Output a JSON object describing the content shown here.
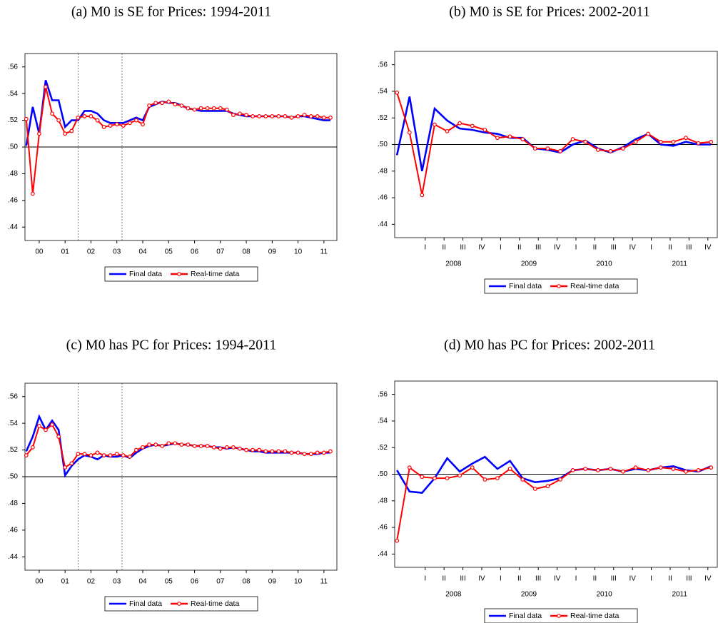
{
  "chart_data": [
    {
      "type": "line",
      "title": "(a) M0 is SE for Prices: 1994-2011",
      "x": [
        2000,
        2000.25,
        2000.5,
        2000.75,
        2001,
        2001.25,
        2001.5,
        2001.75,
        2002,
        2002.25,
        2002.5,
        2002.75,
        2003,
        2003.25,
        2003.5,
        2003.75,
        2004,
        2004.25,
        2004.5,
        2004.75,
        2005,
        2005.25,
        2005.5,
        2005.75,
        2006,
        2006.25,
        2006.5,
        2006.75,
        2007,
        2007.25,
        2007.5,
        2007.75,
        2008,
        2008.25,
        2008.5,
        2008.75,
        2009,
        2009.25,
        2009.5,
        2009.75,
        2010,
        2010.25,
        2010.5,
        2010.75,
        2011,
        2011.25,
        2011.5,
        2011.75
      ],
      "series": [
        {
          "name": "Final data",
          "color": "#0000ff",
          "values": [
            0.501,
            0.53,
            0.51,
            0.55,
            0.535,
            0.535,
            0.515,
            0.52,
            0.52,
            0.527,
            0.527,
            0.525,
            0.52,
            0.518,
            0.518,
            0.518,
            0.52,
            0.522,
            0.52,
            0.53,
            0.532,
            0.534,
            0.533,
            0.533,
            0.531,
            0.529,
            0.528,
            0.527,
            0.527,
            0.527,
            0.527,
            0.527,
            0.525,
            0.524,
            0.523,
            0.523,
            0.523,
            0.523,
            0.523,
            0.523,
            0.523,
            0.522,
            0.523,
            0.523,
            0.522,
            0.521,
            0.52,
            0.52
          ]
        },
        {
          "name": "Real-time data",
          "color": "#ff0000",
          "marker": "circle",
          "values": [
            0.521,
            0.465,
            0.51,
            0.545,
            0.525,
            0.52,
            0.51,
            0.512,
            0.522,
            0.523,
            0.523,
            0.52,
            0.515,
            0.516,
            0.517,
            0.516,
            0.518,
            0.52,
            0.517,
            0.531,
            0.533,
            0.533,
            0.534,
            0.532,
            0.531,
            0.529,
            0.528,
            0.529,
            0.529,
            0.529,
            0.529,
            0.528,
            0.524,
            0.525,
            0.524,
            0.523,
            0.523,
            0.523,
            0.523,
            0.523,
            0.523,
            0.522,
            0.523,
            0.524,
            0.523,
            0.523,
            0.522,
            0.522
          ]
        }
      ],
      "xlim": [
        1999.95,
        2012
      ],
      "ylim": [
        0.43,
        0.57
      ],
      "yticks": [
        {
          "value": 0.44,
          "label": ".44"
        },
        {
          "value": 0.46,
          "label": ".46"
        },
        {
          "value": 0.48,
          "label": ".48"
        },
        {
          "value": 0.5,
          "label": ".50"
        },
        {
          "value": 0.52,
          "label": ".52"
        },
        {
          "value": 0.54,
          "label": ".54"
        },
        {
          "value": 0.56,
          "label": ".56"
        }
      ],
      "xticks": [
        {
          "value": 2000.5,
          "label": "00"
        },
        {
          "value": 2001.5,
          "label": "01"
        },
        {
          "value": 2002.5,
          "label": "02"
        },
        {
          "value": 2003.5,
          "label": "03"
        },
        {
          "value": 2004.5,
          "label": "04"
        },
        {
          "value": 2005.5,
          "label": "05"
        },
        {
          "value": 2006.5,
          "label": "06"
        },
        {
          "value": 2007.5,
          "label": "07"
        },
        {
          "value": 2008.5,
          "label": "08"
        },
        {
          "value": 2009.5,
          "label": "09"
        },
        {
          "value": 2010.5,
          "label": "10"
        },
        {
          "value": 2011.5,
          "label": "11"
        }
      ],
      "hline": 0.5,
      "vlines": [
        2002.0,
        2003.7
      ],
      "legend": "bottom"
    },
    {
      "type": "line",
      "title": "(b) M0 is SE for Prices: 2002-2011",
      "x": [
        2007.75,
        2007.917,
        2008.083,
        2008.25,
        2008.417,
        2008.583,
        2008.75,
        2008.917,
        2009.083,
        2009.25,
        2009.417,
        2009.583,
        2009.75,
        2009.917,
        2010.083,
        2010.25,
        2010.417,
        2010.583,
        2010.75,
        2010.917,
        2011.083,
        2011.25,
        2011.417,
        2011.583,
        2011.75,
        2011.917
      ],
      "series": [
        {
          "name": "Final data",
          "color": "#0000ff",
          "values": [
            0.492,
            0.536,
            0.48,
            0.527,
            0.518,
            0.512,
            0.511,
            0.509,
            0.508,
            0.505,
            0.505,
            0.497,
            0.496,
            0.494,
            0.5,
            0.503,
            0.497,
            0.494,
            0.498,
            0.504,
            0.508,
            0.5,
            0.499,
            0.502,
            0.5,
            0.5
          ]
        },
        {
          "name": "Real-time data",
          "color": "#ff0000",
          "marker": "circle",
          "values": [
            0.539,
            0.509,
            0.462,
            0.515,
            0.51,
            0.516,
            0.514,
            0.511,
            0.505,
            0.506,
            0.504,
            0.497,
            0.497,
            0.495,
            0.504,
            0.502,
            0.496,
            0.495,
            0.497,
            0.502,
            0.508,
            0.502,
            0.502,
            0.505,
            0.501,
            0.502
          ]
        }
      ],
      "xlim": [
        2007.72,
        2012
      ],
      "ylim": [
        0.43,
        0.57
      ],
      "yticks": [
        {
          "value": 0.44,
          "label": ".44"
        },
        {
          "value": 0.46,
          "label": ".46"
        },
        {
          "value": 0.48,
          "label": ".48"
        },
        {
          "value": 0.5,
          "label": ".50"
        },
        {
          "value": 0.52,
          "label": ".52"
        },
        {
          "value": 0.54,
          "label": ".54"
        },
        {
          "value": 0.56,
          "label": ".56"
        }
      ],
      "xticks": [
        {
          "value": 2008.125,
          "label": "I"
        },
        {
          "value": 2008.375,
          "label": "II"
        },
        {
          "value": 2008.625,
          "label": "III"
        },
        {
          "value": 2008.875,
          "label": "IV"
        },
        {
          "value": 2009.125,
          "label": "I"
        },
        {
          "value": 2009.375,
          "label": "II"
        },
        {
          "value": 2009.625,
          "label": "III"
        },
        {
          "value": 2009.875,
          "label": "IV"
        },
        {
          "value": 2010.125,
          "label": "I"
        },
        {
          "value": 2010.375,
          "label": "II"
        },
        {
          "value": 2010.625,
          "label": "III"
        },
        {
          "value": 2010.875,
          "label": "IV"
        },
        {
          "value": 2011.125,
          "label": "I"
        },
        {
          "value": 2011.375,
          "label": "II"
        },
        {
          "value": 2011.625,
          "label": "III"
        },
        {
          "value": 2011.875,
          "label": "IV"
        }
      ],
      "xgroups": [
        {
          "value": 2008.5,
          "label": "2008"
        },
        {
          "value": 2009.5,
          "label": "2009"
        },
        {
          "value": 2010.5,
          "label": "2010"
        },
        {
          "value": 2011.5,
          "label": "2011"
        }
      ],
      "hline": 0.5,
      "legend": "bottom"
    },
    {
      "type": "line",
      "title": "(c) M0 has PC for Prices: 1994-2011",
      "x": [
        2000,
        2000.25,
        2000.5,
        2000.75,
        2001,
        2001.25,
        2001.5,
        2001.75,
        2002,
        2002.25,
        2002.5,
        2002.75,
        2003,
        2003.25,
        2003.5,
        2003.75,
        2004,
        2004.25,
        2004.5,
        2004.75,
        2005,
        2005.25,
        2005.5,
        2005.75,
        2006,
        2006.25,
        2006.5,
        2006.75,
        2007,
        2007.25,
        2007.5,
        2007.75,
        2008,
        2008.25,
        2008.5,
        2008.75,
        2009,
        2009.25,
        2009.5,
        2009.75,
        2010,
        2010.25,
        2010.5,
        2010.75,
        2011,
        2011.25,
        2011.5,
        2011.75
      ],
      "series": [
        {
          "name": "Final data",
          "color": "#0000ff",
          "values": [
            0.519,
            0.53,
            0.545,
            0.535,
            0.542,
            0.535,
            0.501,
            0.508,
            0.513,
            0.516,
            0.515,
            0.513,
            0.516,
            0.515,
            0.515,
            0.516,
            0.514,
            0.518,
            0.521,
            0.523,
            0.524,
            0.523,
            0.524,
            0.525,
            0.524,
            0.524,
            0.523,
            0.523,
            0.523,
            0.522,
            0.522,
            0.521,
            0.522,
            0.521,
            0.52,
            0.519,
            0.519,
            0.518,
            0.518,
            0.518,
            0.518,
            0.518,
            0.518,
            0.517,
            0.517,
            0.517,
            0.518,
            0.518
          ]
        },
        {
          "name": "Real-time data",
          "color": "#ff0000",
          "marker": "circle",
          "values": [
            0.516,
            0.522,
            0.538,
            0.535,
            0.539,
            0.53,
            0.507,
            0.51,
            0.517,
            0.517,
            0.516,
            0.518,
            0.516,
            0.516,
            0.517,
            0.516,
            0.515,
            0.52,
            0.522,
            0.524,
            0.524,
            0.523,
            0.525,
            0.525,
            0.524,
            0.524,
            0.523,
            0.523,
            0.523,
            0.522,
            0.521,
            0.522,
            0.522,
            0.521,
            0.52,
            0.52,
            0.52,
            0.519,
            0.519,
            0.519,
            0.519,
            0.518,
            0.518,
            0.517,
            0.517,
            0.518,
            0.518,
            0.519
          ]
        }
      ],
      "xlim": [
        1999.95,
        2012
      ],
      "ylim": [
        0.43,
        0.57
      ],
      "yticks": [
        {
          "value": 0.44,
          "label": ".44"
        },
        {
          "value": 0.46,
          "label": ".46"
        },
        {
          "value": 0.48,
          "label": ".48"
        },
        {
          "value": 0.5,
          "label": ".50"
        },
        {
          "value": 0.52,
          "label": ".52"
        },
        {
          "value": 0.54,
          "label": ".54"
        },
        {
          "value": 0.56,
          "label": ".56"
        }
      ],
      "xticks": [
        {
          "value": 2000.5,
          "label": "00"
        },
        {
          "value": 2001.5,
          "label": "01"
        },
        {
          "value": 2002.5,
          "label": "02"
        },
        {
          "value": 2003.5,
          "label": "03"
        },
        {
          "value": 2004.5,
          "label": "04"
        },
        {
          "value": 2005.5,
          "label": "05"
        },
        {
          "value": 2006.5,
          "label": "06"
        },
        {
          "value": 2007.5,
          "label": "07"
        },
        {
          "value": 2008.5,
          "label": "08"
        },
        {
          "value": 2009.5,
          "label": "09"
        },
        {
          "value": 2010.5,
          "label": "10"
        },
        {
          "value": 2011.5,
          "label": "11"
        }
      ],
      "hline": 0.5,
      "vlines": [
        2002.0,
        2003.7
      ],
      "legend": "bottom"
    },
    {
      "type": "line",
      "title": "(d) M0 has PC for Prices: 2002-2011",
      "x": [
        2007.75,
        2007.917,
        2008.083,
        2008.25,
        2008.417,
        2008.583,
        2008.75,
        2008.917,
        2009.083,
        2009.25,
        2009.417,
        2009.583,
        2009.75,
        2009.917,
        2010.083,
        2010.25,
        2010.417,
        2010.583,
        2010.75,
        2010.917,
        2011.083,
        2011.25,
        2011.417,
        2011.583,
        2011.75,
        2011.917
      ],
      "series": [
        {
          "name": "Final data",
          "color": "#0000ff",
          "values": [
            0.503,
            0.487,
            0.486,
            0.497,
            0.512,
            0.502,
            0.508,
            0.513,
            0.504,
            0.51,
            0.497,
            0.494,
            0.495,
            0.497,
            0.503,
            0.504,
            0.503,
            0.504,
            0.502,
            0.504,
            0.503,
            0.505,
            0.506,
            0.503,
            0.502,
            0.506
          ]
        },
        {
          "name": "Real-time data",
          "color": "#ff0000",
          "marker": "circle",
          "values": [
            0.45,
            0.505,
            0.498,
            0.497,
            0.497,
            0.499,
            0.505,
            0.496,
            0.497,
            0.504,
            0.496,
            0.489,
            0.491,
            0.496,
            0.503,
            0.504,
            0.503,
            0.504,
            0.502,
            0.505,
            0.503,
            0.505,
            0.504,
            0.502,
            0.503,
            0.505
          ]
        }
      ],
      "xlim": [
        2007.72,
        2012
      ],
      "ylim": [
        0.43,
        0.57
      ],
      "yticks": [
        {
          "value": 0.44,
          "label": ".44"
        },
        {
          "value": 0.46,
          "label": ".46"
        },
        {
          "value": 0.48,
          "label": ".48"
        },
        {
          "value": 0.5,
          "label": ".50"
        },
        {
          "value": 0.52,
          "label": ".52"
        },
        {
          "value": 0.54,
          "label": ".54"
        },
        {
          "value": 0.56,
          "label": ".56"
        }
      ],
      "xticks": [
        {
          "value": 2008.125,
          "label": "I"
        },
        {
          "value": 2008.375,
          "label": "II"
        },
        {
          "value": 2008.625,
          "label": "III"
        },
        {
          "value": 2008.875,
          "label": "IV"
        },
        {
          "value": 2009.125,
          "label": "I"
        },
        {
          "value": 2009.375,
          "label": "II"
        },
        {
          "value": 2009.625,
          "label": "III"
        },
        {
          "value": 2009.875,
          "label": "IV"
        },
        {
          "value": 2010.125,
          "label": "I"
        },
        {
          "value": 2010.375,
          "label": "II"
        },
        {
          "value": 2010.625,
          "label": "III"
        },
        {
          "value": 2010.875,
          "label": "IV"
        },
        {
          "value": 2011.125,
          "label": "I"
        },
        {
          "value": 2011.375,
          "label": "II"
        },
        {
          "value": 2011.625,
          "label": "III"
        },
        {
          "value": 2011.875,
          "label": "IV"
        }
      ],
      "xgroups": [
        {
          "value": 2008.5,
          "label": "2008"
        },
        {
          "value": 2009.5,
          "label": "2009"
        },
        {
          "value": 2010.5,
          "label": "2010"
        },
        {
          "value": 2011.5,
          "label": "2011"
        }
      ],
      "hline": 0.5,
      "legend": "bottom"
    }
  ]
}
